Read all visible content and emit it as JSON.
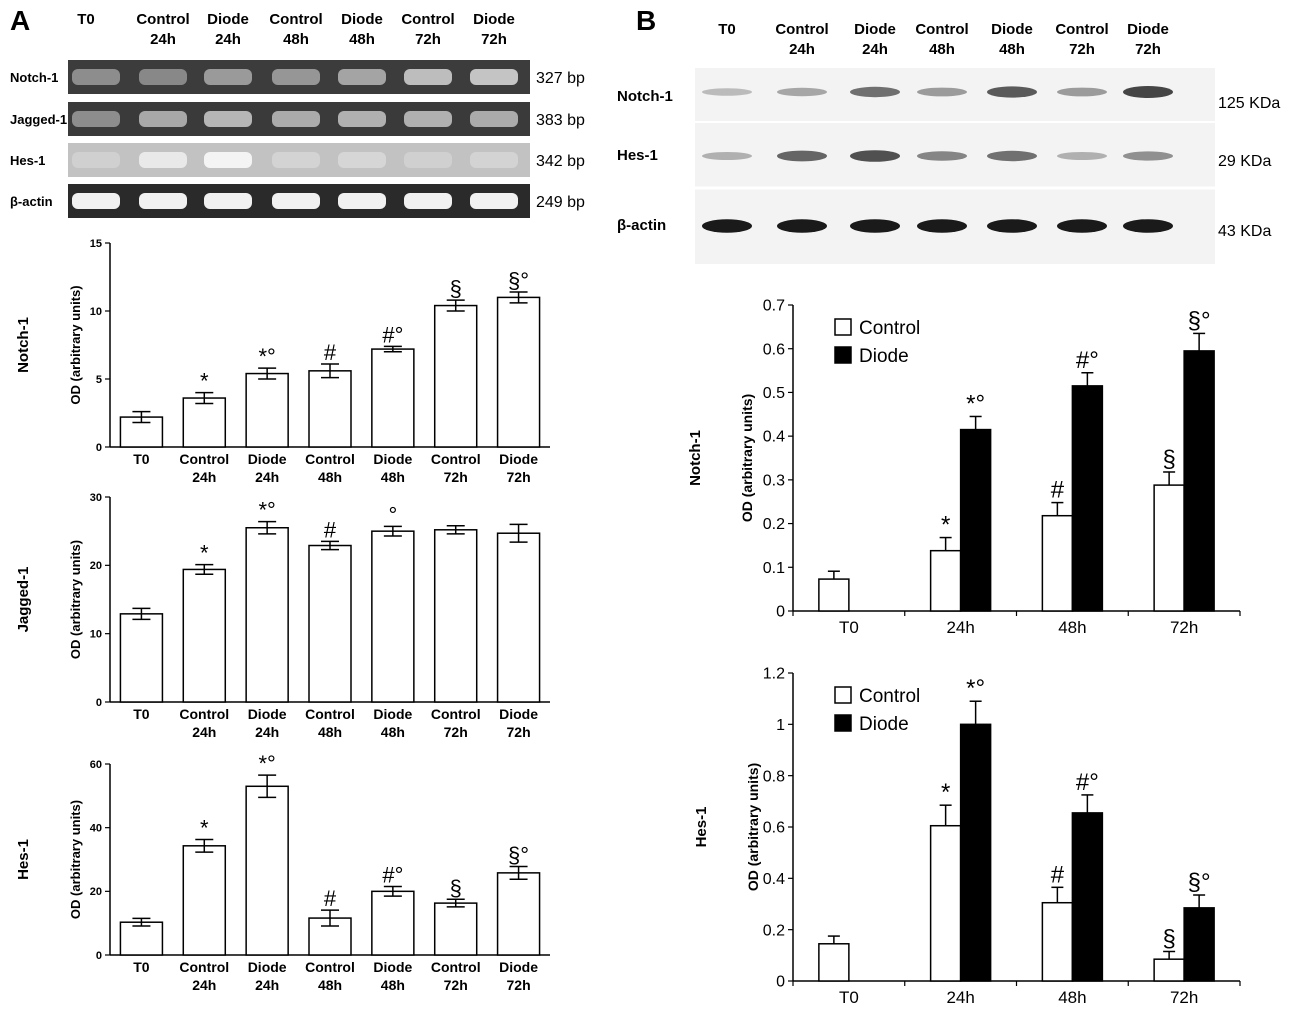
{
  "panels": {
    "A": {
      "letter": "A",
      "gel": {
        "lane_headers": [
          {
            "line1": "T0",
            "line2": ""
          },
          {
            "line1": "Control",
            "line2": "24h"
          },
          {
            "line1": "Diode",
            "line2": "24h"
          },
          {
            "line1": "Control",
            "line2": "48h"
          },
          {
            "line1": "Diode",
            "line2": "48h"
          },
          {
            "line1": "Control",
            "line2": "72h"
          },
          {
            "line1": "Diode",
            "line2": "72h"
          }
        ],
        "rows": [
          {
            "label": "Notch-1",
            "size": "327 bp",
            "intensity": [
              0.35,
              0.32,
              0.42,
              0.4,
              0.48,
              0.62,
              0.66
            ],
            "bg": "#3c3c3c"
          },
          {
            "label": "Jagged-1",
            "size": "383 bp",
            "intensity": [
              0.35,
              0.5,
              0.58,
              0.52,
              0.55,
              0.55,
              0.52
            ],
            "bg": "#3a3a3a"
          },
          {
            "label": "Hes-1",
            "size": "342 bp",
            "intensity": [
              0.15,
              0.6,
              0.8,
              0.2,
              0.25,
              0.15,
              0.2
            ],
            "bg": "#c2c2c2"
          },
          {
            "label": "β-actin",
            "size": "249 bp",
            "intensity": [
              0.92,
              0.92,
              0.92,
              0.92,
              0.92,
              0.92,
              0.92
            ],
            "bg": "#2a2a2a"
          }
        ]
      }
    },
    "B": {
      "letter": "B",
      "blot": {
        "lane_headers": [
          {
            "line1": "T0",
            "line2": ""
          },
          {
            "line1": "Control",
            "line2": "24h"
          },
          {
            "line1": "Diode",
            "line2": "24h"
          },
          {
            "line1": "Control",
            "line2": "48h"
          },
          {
            "line1": "Diode",
            "line2": "48h"
          },
          {
            "line1": "Control",
            "line2": "72h"
          },
          {
            "line1": "Diode",
            "line2": "72h"
          }
        ],
        "rows": [
          {
            "label": "Notch-1",
            "size": "125 KDa",
            "intensity": [
              0.2,
              0.3,
              0.55,
              0.35,
              0.65,
              0.35,
              0.75
            ]
          },
          {
            "label": "Hes-1",
            "size": "29 KDa",
            "intensity": [
              0.25,
              0.6,
              0.7,
              0.45,
              0.55,
              0.25,
              0.4
            ]
          },
          {
            "label": "β-actin",
            "size": "43 KDa",
            "intensity": [
              0.95,
              0.95,
              0.95,
              0.95,
              0.95,
              0.95,
              0.95
            ]
          }
        ]
      }
    }
  },
  "chart_data": [
    {
      "id": "A-notch",
      "type": "bar",
      "title": "",
      "row_label": "Notch-1",
      "ylabel": "OD (arbitrary units)",
      "ylim": [
        0,
        15
      ],
      "yticks": [
        "0",
        "5",
        "10",
        "15"
      ],
      "categories": [
        {
          "line1": "T0",
          "line2": ""
        },
        {
          "line1": "Control",
          "line2": "24h"
        },
        {
          "line1": "Diode",
          "line2": "24h"
        },
        {
          "line1": "Control",
          "line2": "48h"
        },
        {
          "line1": "Diode",
          "line2": "48h"
        },
        {
          "line1": "Control",
          "line2": "72h"
        },
        {
          "line1": "Diode",
          "line2": "72h"
        }
      ],
      "values": [
        2.2,
        3.6,
        5.4,
        5.6,
        7.2,
        10.4,
        11.0
      ],
      "errors": [
        0.4,
        0.4,
        0.4,
        0.5,
        0.2,
        0.4,
        0.4
      ],
      "annotations": [
        "",
        "*",
        "*°",
        "#",
        "#°",
        "§",
        "§°"
      ]
    },
    {
      "id": "A-jagged",
      "type": "bar",
      "title": "",
      "row_label": "Jagged-1",
      "ylabel": "OD (arbitrary units)",
      "ylim": [
        0,
        30
      ],
      "yticks": [
        "0",
        "10",
        "20",
        "30"
      ],
      "categories": [
        {
          "line1": "T0",
          "line2": ""
        },
        {
          "line1": "Control",
          "line2": "24h"
        },
        {
          "line1": "Diode",
          "line2": "24h"
        },
        {
          "line1": "Control",
          "line2": "48h"
        },
        {
          "line1": "Diode",
          "line2": "48h"
        },
        {
          "line1": "Control",
          "line2": "72h"
        },
        {
          "line1": "Diode",
          "line2": "72h"
        }
      ],
      "values": [
        12.9,
        19.4,
        25.5,
        22.9,
        25.0,
        25.2,
        24.7
      ],
      "errors": [
        0.8,
        0.7,
        0.9,
        0.6,
        0.7,
        0.6,
        1.3
      ],
      "annotations": [
        "",
        "*",
        "*°",
        "#",
        "°",
        "",
        ""
      ]
    },
    {
      "id": "A-hes",
      "type": "bar",
      "title": "",
      "row_label": "Hes-1",
      "ylabel": "OD (arbitrary units)",
      "ylim": [
        0,
        60
      ],
      "yticks": [
        "0",
        "20",
        "40",
        "60"
      ],
      "categories": [
        {
          "line1": "T0",
          "line2": ""
        },
        {
          "line1": "Control",
          "line2": "24h"
        },
        {
          "line1": "Diode",
          "line2": "24h"
        },
        {
          "line1": "Control",
          "line2": "48h"
        },
        {
          "line1": "Diode",
          "line2": "48h"
        },
        {
          "line1": "Control",
          "line2": "72h"
        },
        {
          "line1": "Diode",
          "line2": "72h"
        }
      ],
      "values": [
        10.3,
        34.3,
        53.0,
        11.6,
        20.0,
        16.3,
        25.8
      ],
      "errors": [
        1.2,
        2.0,
        3.5,
        2.5,
        1.5,
        1.2,
        2.0
      ],
      "annotations": [
        "",
        "*",
        "*°",
        "#",
        "#°",
        "§",
        "§°"
      ]
    },
    {
      "id": "B-notch",
      "type": "bar",
      "title": "",
      "row_label": "Notch-1",
      "ylabel": "OD (arbitrary units)",
      "ylim": [
        0,
        0.7
      ],
      "yticks": [
        "0",
        "0.1",
        "0.2",
        "0.3",
        "0.4",
        "0.5",
        "0.6",
        "0.7"
      ],
      "categories": [
        "T0",
        "24h",
        "48h",
        "72h"
      ],
      "legend": {
        "position": "top-left",
        "items": [
          "Control",
          "Diode"
        ]
      },
      "series": [
        {
          "name": "Control",
          "color": "#ffffff",
          "values": [
            0.073,
            0.138,
            0.218,
            0.288
          ],
          "errors": [
            0.018,
            0.03,
            0.03,
            0.03
          ],
          "annotations": [
            "",
            "*",
            "#",
            "§"
          ]
        },
        {
          "name": "Diode",
          "color": "#000000",
          "values": [
            null,
            0.415,
            0.515,
            0.595
          ],
          "errors": [
            null,
            0.03,
            0.03,
            0.04
          ],
          "annotations": [
            "",
            "*°",
            "#°",
            "§°"
          ]
        }
      ]
    },
    {
      "id": "B-hes",
      "type": "bar",
      "title": "",
      "row_label": "Hes-1",
      "ylabel": "OD (arbitrary units)",
      "ylim": [
        0,
        1.2
      ],
      "yticks": [
        "0",
        "0.2",
        "0.4",
        "0.6",
        "0.8",
        "1",
        "1.2"
      ],
      "categories": [
        "T0",
        "24h",
        "48h",
        "72h"
      ],
      "legend": {
        "position": "top-left",
        "items": [
          "Control",
          "Diode"
        ]
      },
      "series": [
        {
          "name": "Control",
          "color": "#ffffff",
          "values": [
            0.145,
            0.605,
            0.305,
            0.085
          ],
          "errors": [
            0.03,
            0.08,
            0.06,
            0.03
          ],
          "annotations": [
            "",
            "*",
            "#",
            "§"
          ]
        },
        {
          "name": "Diode",
          "color": "#000000",
          "values": [
            null,
            1.0,
            0.655,
            0.285
          ],
          "errors": [
            null,
            0.09,
            0.07,
            0.05
          ],
          "annotations": [
            "",
            "*°",
            "#°",
            "§°"
          ]
        }
      ]
    }
  ]
}
